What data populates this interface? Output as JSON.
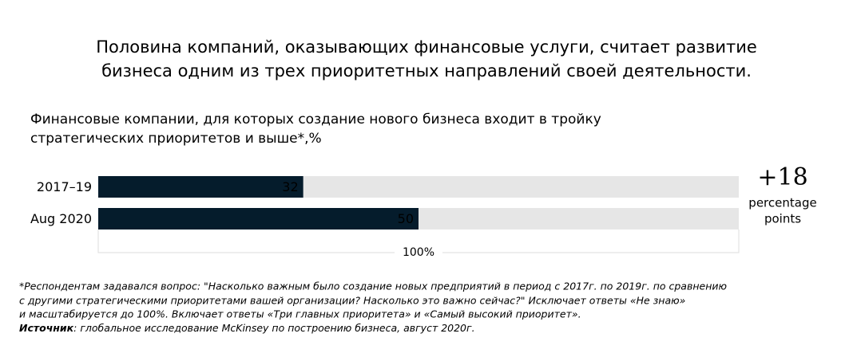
{
  "chart_data": {
    "type": "bar",
    "title": [
      "Половина компаний, оказывающих финансовые услуги, считает развитие",
      "бизнеса одним из трех приоритетных направлений своей деятельности."
    ],
    "subtitle": [
      "Финансовые компании, для которых создание нового бизнеса входит в тройку",
      "стратегических приоритетов и выше*,%"
    ],
    "categories": [
      "2017–19",
      "Aug 2020"
    ],
    "values": [
      32,
      50
    ],
    "color": "#051c2c",
    "track_color": "#e6e6e6",
    "xlim": [
      0,
      100
    ],
    "xticks": [
      {
        "value": 100,
        "label": "100%"
      }
    ],
    "annotation": {
      "value": "+18",
      "text": [
        "percentage",
        "points"
      ]
    },
    "footnote": [
      "*Респондентам задавался вопрос: \"Насколько важным было создание новых предприятий в период с 2017г. по 2019г. по сравнению",
      "с другими стратегическими приоритетами вашей организации? Насколько это важно сейчас?\" Исключает ответы «Не знаю»",
      "и масштабируется до 100%. Включает ответы «Три главных приоритета» и «Самый высокий приоритет»."
    ],
    "source": {
      "label": "Источник",
      "text": ": глобальное исследование McKinsey по построению бизнеса, август 2020г."
    }
  }
}
